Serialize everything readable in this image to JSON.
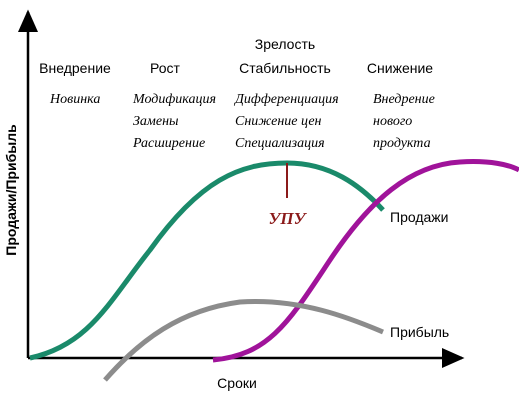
{
  "axes": {
    "y_label": "Продажи/Прибыль",
    "x_label": "Сроки"
  },
  "stages": [
    {
      "title": [
        "Внедрение"
      ],
      "items": [
        "Новинка"
      ]
    },
    {
      "title": [
        "Рост"
      ],
      "items": [
        "Модификация",
        "Замены",
        "Расширение"
      ]
    },
    {
      "title": [
        "Зрелость",
        "Стабильность"
      ],
      "items": [
        "Дифференциация",
        "Снижение цен",
        "Специализация"
      ]
    },
    {
      "title": [
        "Снижение"
      ],
      "items": [
        "Внедрение",
        "нового",
        "продукта"
      ]
    }
  ],
  "curves": {
    "sales": "Продажи",
    "profit": "Прибыль"
  },
  "marker": "УПУ"
}
